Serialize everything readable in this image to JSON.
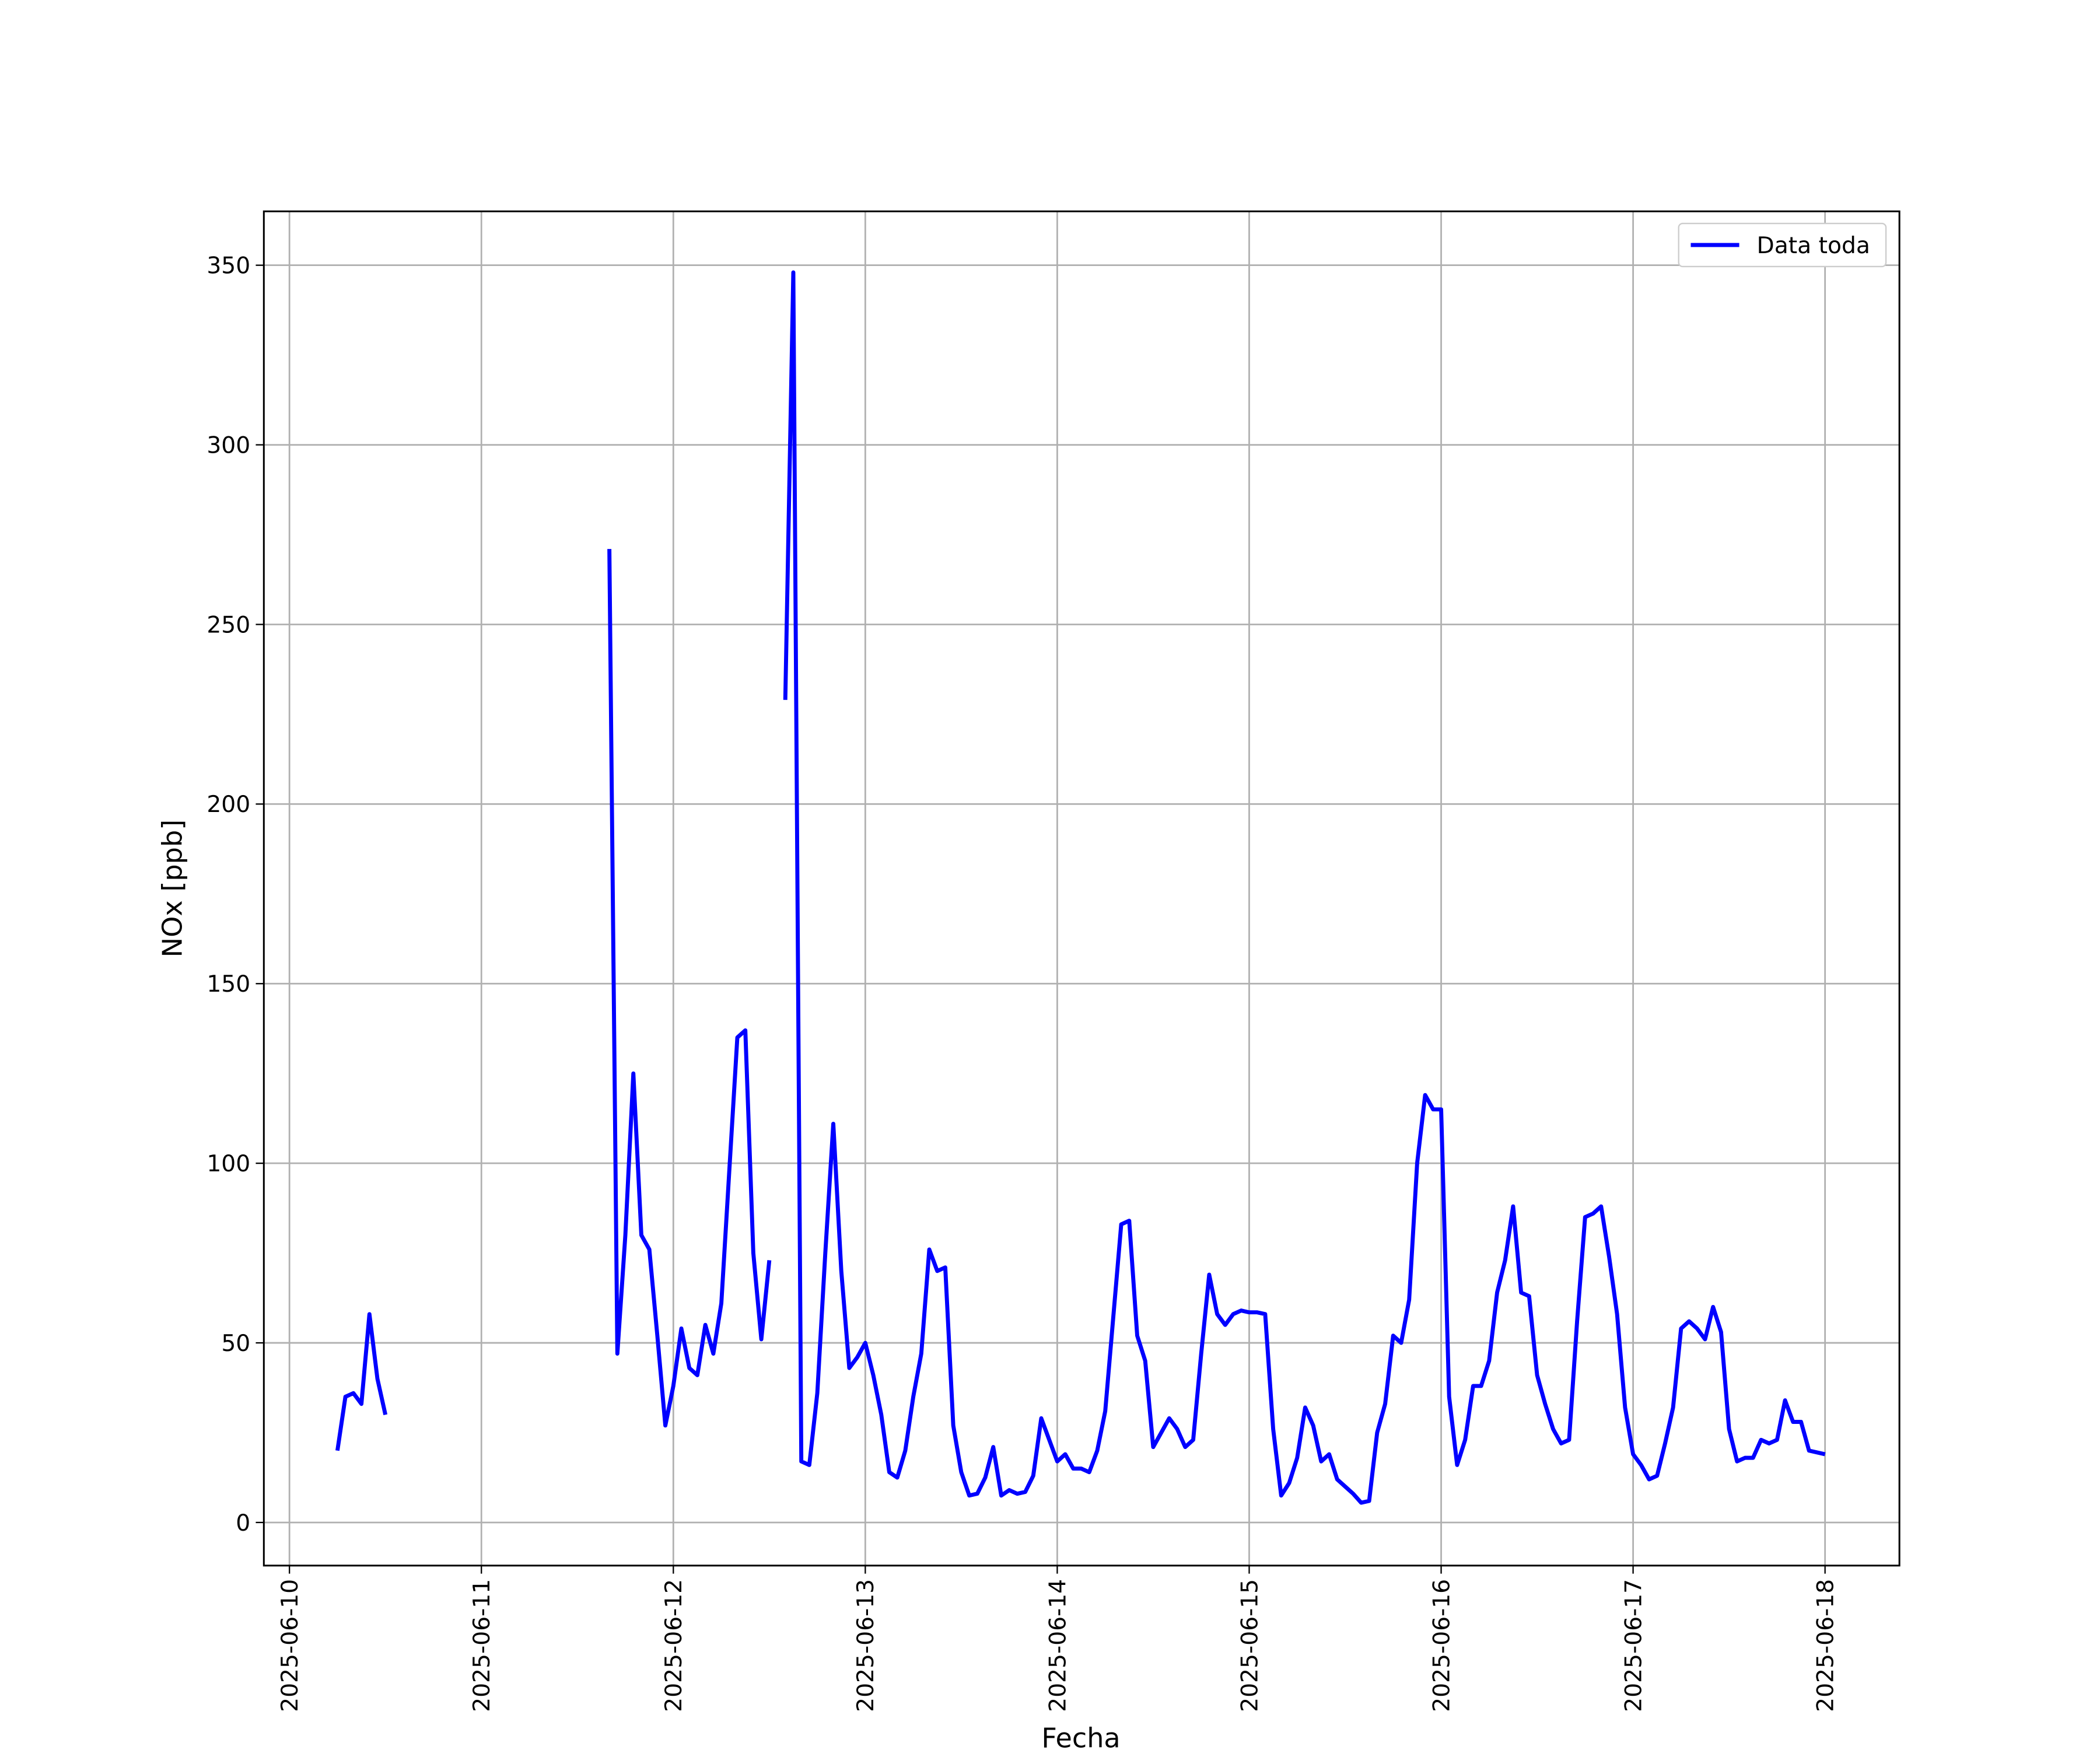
{
  "chart_data": {
    "type": "line",
    "x_label": "Fecha",
    "y_label": "NOx [ppb]",
    "x": [
      6,
      7,
      8,
      9,
      10,
      11,
      12,
      13,
      40,
      41,
      42,
      43,
      44,
      45,
      46,
      47,
      48,
      49,
      50,
      51,
      52,
      53,
      54,
      55,
      56,
      57,
      58,
      59,
      60,
      61,
      62,
      63,
      64,
      65,
      66,
      67,
      68,
      69,
      70,
      71,
      72,
      73,
      74,
      75,
      76,
      77,
      78,
      79,
      80,
      81,
      82,
      83,
      84,
      85,
      86,
      87,
      88,
      89,
      90,
      91,
      92,
      93,
      94,
      95,
      96,
      97,
      98,
      99,
      100,
      101,
      102,
      103,
      104,
      105,
      106,
      107,
      108,
      109,
      110,
      111,
      112,
      113,
      114,
      115,
      116,
      117,
      118,
      119,
      120,
      121,
      122,
      123,
      124,
      125,
      126,
      127,
      128,
      129,
      130,
      131,
      132,
      133,
      134,
      135,
      136,
      137,
      138,
      139,
      140,
      141,
      142,
      143,
      144,
      145,
      146,
      147,
      148,
      149,
      150,
      151,
      152,
      153,
      154,
      155,
      156,
      157,
      158,
      159,
      160,
      161,
      162,
      163,
      164,
      165,
      166,
      167,
      168,
      169,
      170,
      171,
      172,
      173,
      174,
      175,
      176,
      177,
      178,
      179,
      180,
      181,
      182,
      183,
      184,
      185,
      186,
      187,
      188,
      189,
      190,
      191,
      192
    ],
    "series": [
      {
        "name": "Data toda",
        "color": "#0000ff",
        "values": [
          20,
          35,
          36,
          33,
          58,
          40,
          30,
          null,
          271,
          47,
          80,
          125,
          80,
          76,
          52,
          27,
          38,
          54,
          43,
          41,
          55,
          47,
          61,
          98,
          135,
          137,
          75,
          51,
          73,
          null,
          229,
          348,
          17,
          16,
          36,
          75,
          111,
          70,
          43,
          46,
          50,
          41,
          30,
          14,
          12.5,
          20,
          35,
          47,
          76,
          70,
          71,
          27,
          14,
          7.5,
          8,
          12.5,
          21,
          7.5,
          9,
          8,
          8.5,
          13,
          29,
          23,
          17,
          19,
          15,
          15,
          14,
          20,
          31,
          57,
          83,
          84,
          52,
          45,
          21,
          25,
          29,
          26,
          21,
          23,
          47,
          69,
          58,
          55,
          58,
          59,
          58.5,
          58.5,
          58,
          26,
          7.5,
          11,
          18,
          32,
          27,
          17,
          19,
          12,
          10,
          8,
          5.5,
          6,
          25,
          33,
          52,
          50,
          62,
          100,
          119,
          115,
          115,
          35,
          16,
          23,
          38,
          38,
          45,
          64,
          73,
          88,
          64,
          63,
          41,
          33,
          26,
          22,
          23,
          56,
          85,
          86,
          88,
          74,
          58,
          32,
          19,
          16,
          12,
          13,
          22,
          32,
          54,
          56,
          54,
          51,
          60,
          53,
          26,
          17,
          18,
          18,
          23,
          22,
          23,
          34,
          28,
          28,
          20,
          19.5,
          19
        ]
      }
    ],
    "xlim": [
      -3.2,
      201.3
    ],
    "xticks": [
      {
        "value": 0,
        "label": "2025-06-10"
      },
      {
        "value": 24,
        "label": "2025-06-11"
      },
      {
        "value": 48,
        "label": "2025-06-12"
      },
      {
        "value": 72,
        "label": "2025-06-13"
      },
      {
        "value": 96,
        "label": "2025-06-14"
      },
      {
        "value": 120,
        "label": "2025-06-15"
      },
      {
        "value": 144,
        "label": "2025-06-16"
      },
      {
        "value": 168,
        "label": "2025-06-17"
      },
      {
        "value": 192,
        "label": "2025-06-18"
      }
    ],
    "ylim": [
      -12,
      365
    ],
    "yticks": [
      0,
      50,
      100,
      150,
      200,
      250,
      300,
      350
    ],
    "grid": true,
    "legend": "upper right"
  }
}
